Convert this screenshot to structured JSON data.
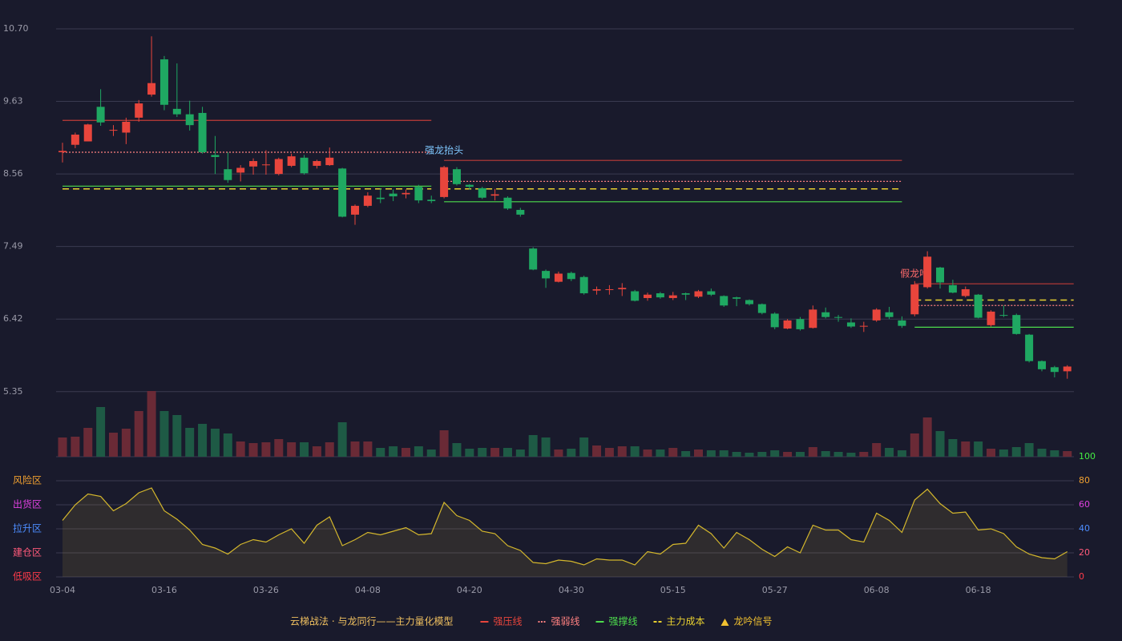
{
  "chart_data": {
    "type": "candlestick",
    "categories": [
      "03-04",
      null,
      null,
      null,
      null,
      null,
      null,
      null,
      "03-16",
      null,
      null,
      null,
      null,
      null,
      null,
      null,
      "03-26",
      null,
      null,
      null,
      null,
      null,
      null,
      null,
      "04-08",
      null,
      null,
      null,
      null,
      null,
      null,
      null,
      "04-20",
      null,
      null,
      null,
      null,
      null,
      null,
      null,
      "04-30",
      null,
      null,
      null,
      null,
      null,
      null,
      null,
      "05-15",
      null,
      null,
      null,
      null,
      null,
      null,
      null,
      "05-27",
      null,
      null,
      null,
      null,
      null,
      null,
      null,
      "06-08",
      null,
      null,
      null,
      null,
      null,
      null,
      null,
      "06-18",
      null,
      null,
      null,
      null,
      null,
      null,
      null
    ],
    "open": [
      8.88,
      8.99,
      9.04,
      9.55,
      9.2,
      9.17,
      9.39,
      9.73,
      10.25,
      9.52,
      9.44,
      9.46,
      8.84,
      8.63,
      8.58,
      8.67,
      8.69,
      8.56,
      8.68,
      8.8,
      8.68,
      8.69,
      8.64,
      7.96,
      8.09,
      8.21,
      8.27,
      8.26,
      8.37,
      8.18,
      8.22,
      8.63,
      8.4,
      8.35,
      8.24,
      8.21,
      8.03,
      7.46,
      7.13,
      6.97,
      7.1,
      7.04,
      6.84,
      6.85,
      6.86,
      6.83,
      6.73,
      6.8,
      6.73,
      6.8,
      6.75,
      6.83,
      6.76,
      6.74,
      6.7,
      6.64,
      6.5,
      6.28,
      6.42,
      6.29,
      6.52,
      6.45,
      6.37,
      6.31,
      6.4,
      6.52,
      6.4,
      6.49,
      6.89,
      7.18,
      6.92,
      6.76,
      6.78,
      6.33,
      6.48,
      6.48,
      6.19,
      5.8,
      5.71,
      5.65
    ],
    "high": [
      9.02,
      9.17,
      9.3,
      9.81,
      9.28,
      9.39,
      9.65,
      10.59,
      10.3,
      10.19,
      9.64,
      9.55,
      9.12,
      8.88,
      8.69,
      8.79,
      8.91,
      8.8,
      8.86,
      8.84,
      8.77,
      8.95,
      8.65,
      8.11,
      8.29,
      8.35,
      8.33,
      8.33,
      8.4,
      8.24,
      8.68,
      8.66,
      8.41,
      8.37,
      8.34,
      8.23,
      8.06,
      7.48,
      7.15,
      7.12,
      7.12,
      7.06,
      6.9,
      6.92,
      6.95,
      6.85,
      6.81,
      6.82,
      6.82,
      6.81,
      6.85,
      6.87,
      6.77,
      6.75,
      6.71,
      6.65,
      6.52,
      6.42,
      6.45,
      6.62,
      6.59,
      6.48,
      6.43,
      6.38,
      6.58,
      6.6,
      6.46,
      6.98,
      7.42,
      7.19,
      7,
      6.9,
      6.79,
      6.55,
      6.62,
      6.5,
      6.2,
      5.81,
      5.73,
      5.74
    ],
    "low": [
      8.73,
      8.94,
      9.04,
      9.27,
      9.12,
      9,
      9.33,
      9.7,
      9.5,
      9.4,
      9.2,
      8.86,
      8.56,
      8.43,
      8.45,
      8.55,
      8.55,
      8.54,
      8.66,
      8.55,
      8.64,
      8.68,
      7.92,
      7.81,
      8.07,
      8.13,
      8.16,
      8.2,
      8.13,
      8.13,
      8.2,
      8.39,
      8.33,
      8.19,
      8.17,
      8.03,
      7.93,
      7.14,
      6.88,
      6.96,
      6.98,
      6.78,
      6.78,
      6.78,
      6.76,
      6.68,
      6.69,
      6.72,
      6.7,
      6.7,
      6.73,
      6.76,
      6.6,
      6.61,
      6.62,
      6.49,
      6.27,
      6.27,
      6.25,
      6.28,
      6.43,
      6.38,
      6.29,
      6.23,
      6.38,
      6.42,
      6.29,
      6.46,
      6.87,
      6.87,
      6.8,
      6.74,
      6.43,
      6.31,
      6.45,
      6.19,
      5.78,
      5.65,
      5.56,
      5.54
    ],
    "close": [
      8.9,
      9.14,
      9.29,
      9.32,
      9.21,
      9.33,
      9.6,
      9.9,
      9.58,
      9.44,
      9.28,
      8.88,
      8.81,
      8.47,
      8.65,
      8.75,
      8.7,
      8.78,
      8.82,
      8.57,
      8.75,
      8.8,
      7.93,
      8.09,
      8.24,
      8.19,
      8.23,
      8.28,
      8.17,
      8.16,
      8.66,
      8.41,
      8.37,
      8.21,
      8.26,
      8.05,
      7.96,
      7.15,
      7.02,
      7.09,
      7.01,
      6.8,
      6.86,
      6.86,
      6.88,
      6.69,
      6.78,
      6.74,
      6.77,
      6.78,
      6.83,
      6.78,
      6.62,
      6.72,
      6.64,
      6.51,
      6.3,
      6.4,
      6.27,
      6.56,
      6.45,
      6.44,
      6.31,
      6.32,
      6.56,
      6.45,
      6.32,
      6.93,
      7.34,
      6.96,
      6.81,
      6.86,
      6.44,
      6.53,
      6.47,
      6.2,
      5.8,
      5.68,
      5.64,
      5.72
    ],
    "up_color": "#e8453c",
    "down_color": "#1fa862",
    "ylim": [
      4.39,
      10.7
    ],
    "yticks": [
      {
        "value": 10.7,
        "label": "10.70"
      },
      9.63,
      8.56,
      7.49,
      6.42,
      5.35
    ],
    "grid": true,
    "volume": {
      "values": [
        24,
        25,
        36,
        62,
        30,
        35,
        57,
        82,
        57,
        52,
        36,
        41,
        35,
        29,
        19,
        17,
        18,
        22,
        18,
        18,
        13,
        18,
        43,
        19,
        19,
        11,
        13,
        11,
        13,
        9,
        33,
        17,
        10,
        11,
        11,
        11,
        9,
        27,
        24,
        9,
        10,
        24,
        14,
        11,
        13,
        13,
        9,
        9,
        11,
        7,
        9,
        8,
        8,
        6,
        5,
        6,
        8,
        6,
        6,
        12,
        7,
        6,
        5,
        6,
        17,
        11,
        8,
        29,
        49,
        32,
        22,
        19,
        19,
        10,
        9,
        12,
        17,
        10,
        8,
        7
      ],
      "ylim": [
        0,
        82
      ],
      "up_color": "#6a2a36",
      "down_color": "#1e5a45"
    },
    "indicator": {
      "values": [
        47,
        60,
        69,
        67,
        55,
        61,
        70,
        74,
        55,
        48,
        39,
        27,
        24,
        19,
        27,
        31,
        29,
        35,
        40,
        28,
        43,
        50,
        26,
        31,
        37,
        35,
        38,
        41,
        35,
        36,
        62,
        51,
        47,
        38,
        36,
        26,
        22,
        12,
        11,
        14,
        13,
        10,
        15,
        14,
        14,
        10,
        21,
        19,
        27,
        28,
        43,
        36,
        24,
        37,
        31,
        23,
        17,
        25,
        20,
        43,
        39,
        39,
        31,
        29,
        53,
        47,
        37,
        64,
        73,
        61,
        53,
        54,
        39,
        40,
        36,
        25,
        19,
        16,
        15,
        21
      ],
      "ylim": [
        0,
        100
      ],
      "yticks": [
        0,
        20,
        40,
        60,
        80,
        100
      ],
      "ytick_colors": [
        "#ff3b4a",
        "#ff5a7a",
        "#4d8dff",
        "#e040e0",
        "#f0a030",
        "#44ee44"
      ],
      "color": "#d4b72c",
      "zones": [
        {
          "name": "风险区",
          "value": 80,
          "color": "#f0a030"
        },
        {
          "name": "出货区",
          "value": 60,
          "color": "#e040e0"
        },
        {
          "name": "拉升区",
          "value": 40,
          "color": "#4d8dff"
        },
        {
          "name": "建仓区",
          "value": 20,
          "color": "#ff5a7a"
        },
        {
          "name": "低吸区",
          "value": 0,
          "color": "#ff3b4a"
        }
      ]
    },
    "levels": [
      {
        "from": 0,
        "to": 29,
        "resistance": 9.35,
        "pivot": 8.88,
        "support": 8.38,
        "cost": 8.34
      },
      {
        "from": 30,
        "to": 66,
        "resistance": 8.76,
        "pivot": 8.45,
        "support": 8.15,
        "cost": 8.34,
        "label": "强龙抬头",
        "label_color": "#7fc8ff"
      },
      {
        "from": 67,
        "to": 79,
        "resistance": 6.94,
        "pivot": 6.62,
        "support": 6.3,
        "cost": 6.7,
        "label": "假龙吟",
        "label_color": "#ff6b6b"
      }
    ],
    "legend": {
      "title": "云梯战法 · 与龙同行——主力量化模型",
      "title_color": "#f0c060",
      "items": [
        {
          "name": "强压线",
          "key": "resistance",
          "color": "#e8453c",
          "style": "solid"
        },
        {
          "name": "强弱线",
          "key": "pivot",
          "color": "#ff8080",
          "style": "dotted"
        },
        {
          "name": "强撑线",
          "key": "support",
          "color": "#4ddc4d",
          "style": "solid"
        },
        {
          "name": "主力成本",
          "key": "cost",
          "color": "#e8d030",
          "style": "dashed"
        },
        {
          "name": "龙吟信号",
          "key": "signal",
          "color": "#f0c030",
          "style": "triangle"
        }
      ]
    }
  }
}
